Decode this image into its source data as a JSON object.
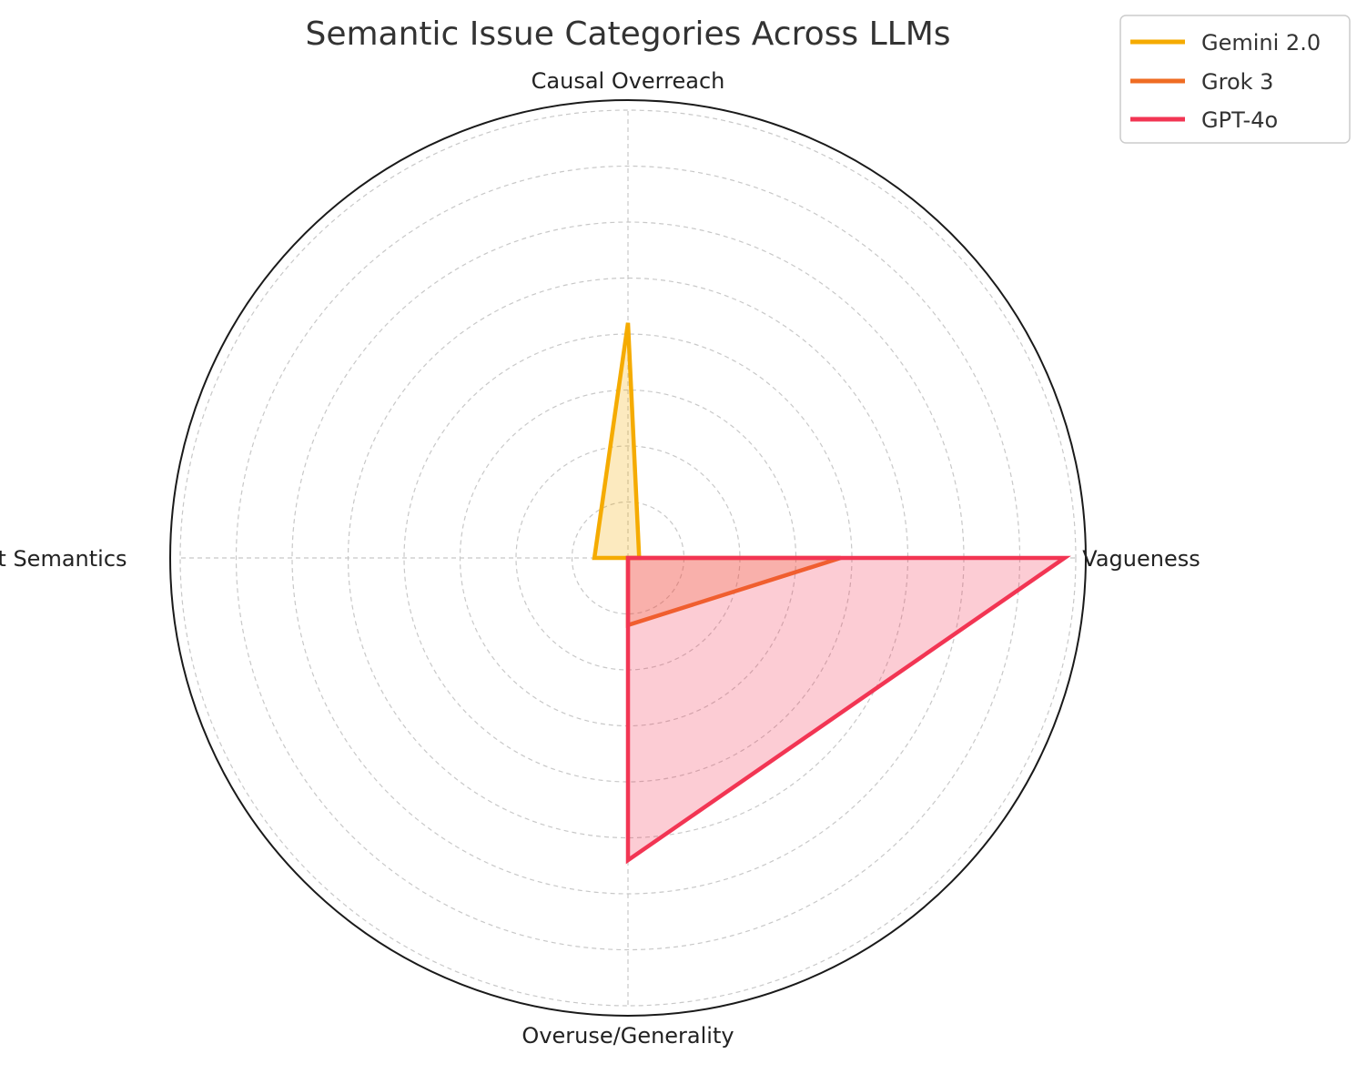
{
  "chart_data": {
    "type": "radar",
    "title": "Semantic Issue Categories Across LLMs",
    "categories": [
      "Causal Overreach",
      "Vagueness",
      "Overuse/Generality",
      "Incorrect Semantics"
    ],
    "rlim": [
      0,
      8
    ],
    "grid": true,
    "legend_position": "top-right",
    "series": [
      {
        "name": "Gemini 2.0",
        "color": "#f5ab00",
        "values": [
          4.2,
          0.2,
          0.0,
          0.6
        ]
      },
      {
        "name": "Grok 3",
        "color": "#ef6c23",
        "values": [
          0.0,
          3.8,
          1.2,
          0.0
        ]
      },
      {
        "name": "GPT-4o",
        "color": "#f23553",
        "values": [
          0.0,
          7.8,
          5.4,
          0.0
        ]
      }
    ]
  }
}
